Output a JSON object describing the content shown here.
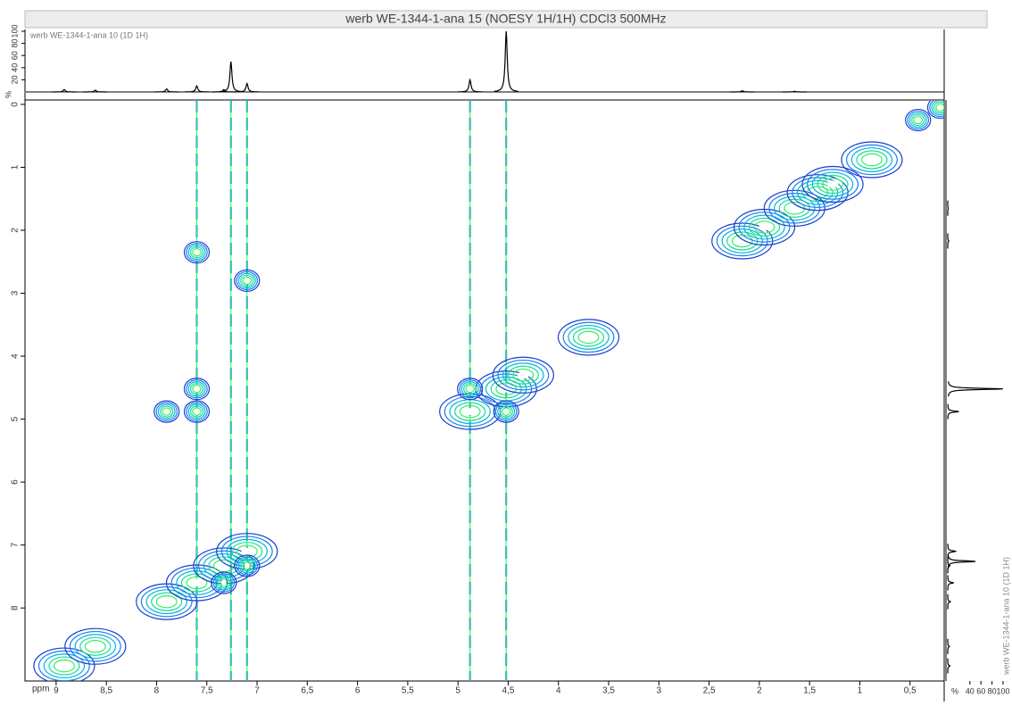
{
  "chart_data": {
    "type": "contour",
    "title": "werb WE-1344-1-ana 15 (NOESY 1H/1H) CDCl3 500MHz",
    "x_label": "ppm",
    "projection_label": "werb WE-1344-1-ana 10 (1D 1H)",
    "projection_unit": "%",
    "xlim": [
      9.31,
      0.16
    ],
    "ylim": [
      -0.07,
      9.16
    ],
    "xticks": [
      9,
      {
        "value": 8.5,
        "label": "8,5"
      },
      8,
      {
        "value": 7.5,
        "label": "7,5"
      },
      7,
      {
        "value": 6.5,
        "label": "6,5"
      },
      6,
      {
        "value": 5.5,
        "label": "5,5"
      },
      5,
      {
        "value": 4.5,
        "label": "4,5"
      },
      4,
      {
        "value": 3.5,
        "label": "3,5"
      },
      3,
      {
        "value": 2.5,
        "label": "2,5"
      },
      2,
      {
        "value": 1.5,
        "label": "1,5"
      },
      1,
      {
        "value": 0.5,
        "label": "0,5"
      }
    ],
    "yticks": [
      0,
      1,
      2,
      3,
      4,
      5,
      6,
      7,
      8
    ],
    "projection_lim": [
      0,
      100
    ],
    "top_projection_ticks": [
      20,
      40,
      60,
      80,
      100
    ],
    "right_projection_ticks": [
      40,
      60,
      80,
      100
    ],
    "spectrum": {
      "x": [
        8.92,
        8.61,
        7.9,
        7.6,
        7.33,
        7.26,
        7.1,
        4.88,
        4.52,
        2.17,
        1.65
      ],
      "values": [
        4,
        3,
        5,
        10,
        4,
        50,
        14,
        20,
        100,
        2,
        1
      ]
    },
    "peaks": {
      "x": [
        8.92,
        8.61,
        7.9,
        7.6,
        7.33,
        7.1,
        4.88,
        4.52,
        3.7,
        2.17,
        1.95,
        1.65,
        1.42,
        1.27,
        0.88,
        0.42,
        0.2,
        7.6,
        7.1,
        7.6,
        7.6,
        7.9,
        4.52,
        4.88,
        4.35,
        7.33,
        7.1
      ],
      "y": [
        8.92,
        8.61,
        7.9,
        7.6,
        7.33,
        7.1,
        4.88,
        4.52,
        3.7,
        2.17,
        1.95,
        1.65,
        1.4,
        1.27,
        0.88,
        0.25,
        0.05,
        2.35,
        2.8,
        4.52,
        4.88,
        4.88,
        4.88,
        4.52,
        4.3,
        7.6,
        7.33
      ]
    },
    "contour_colors": [
      "#1a3fd0",
      "#1e7df0",
      "#00b8d8",
      "#18d8a0",
      "#2ef060",
      "#ffffff"
    ]
  }
}
